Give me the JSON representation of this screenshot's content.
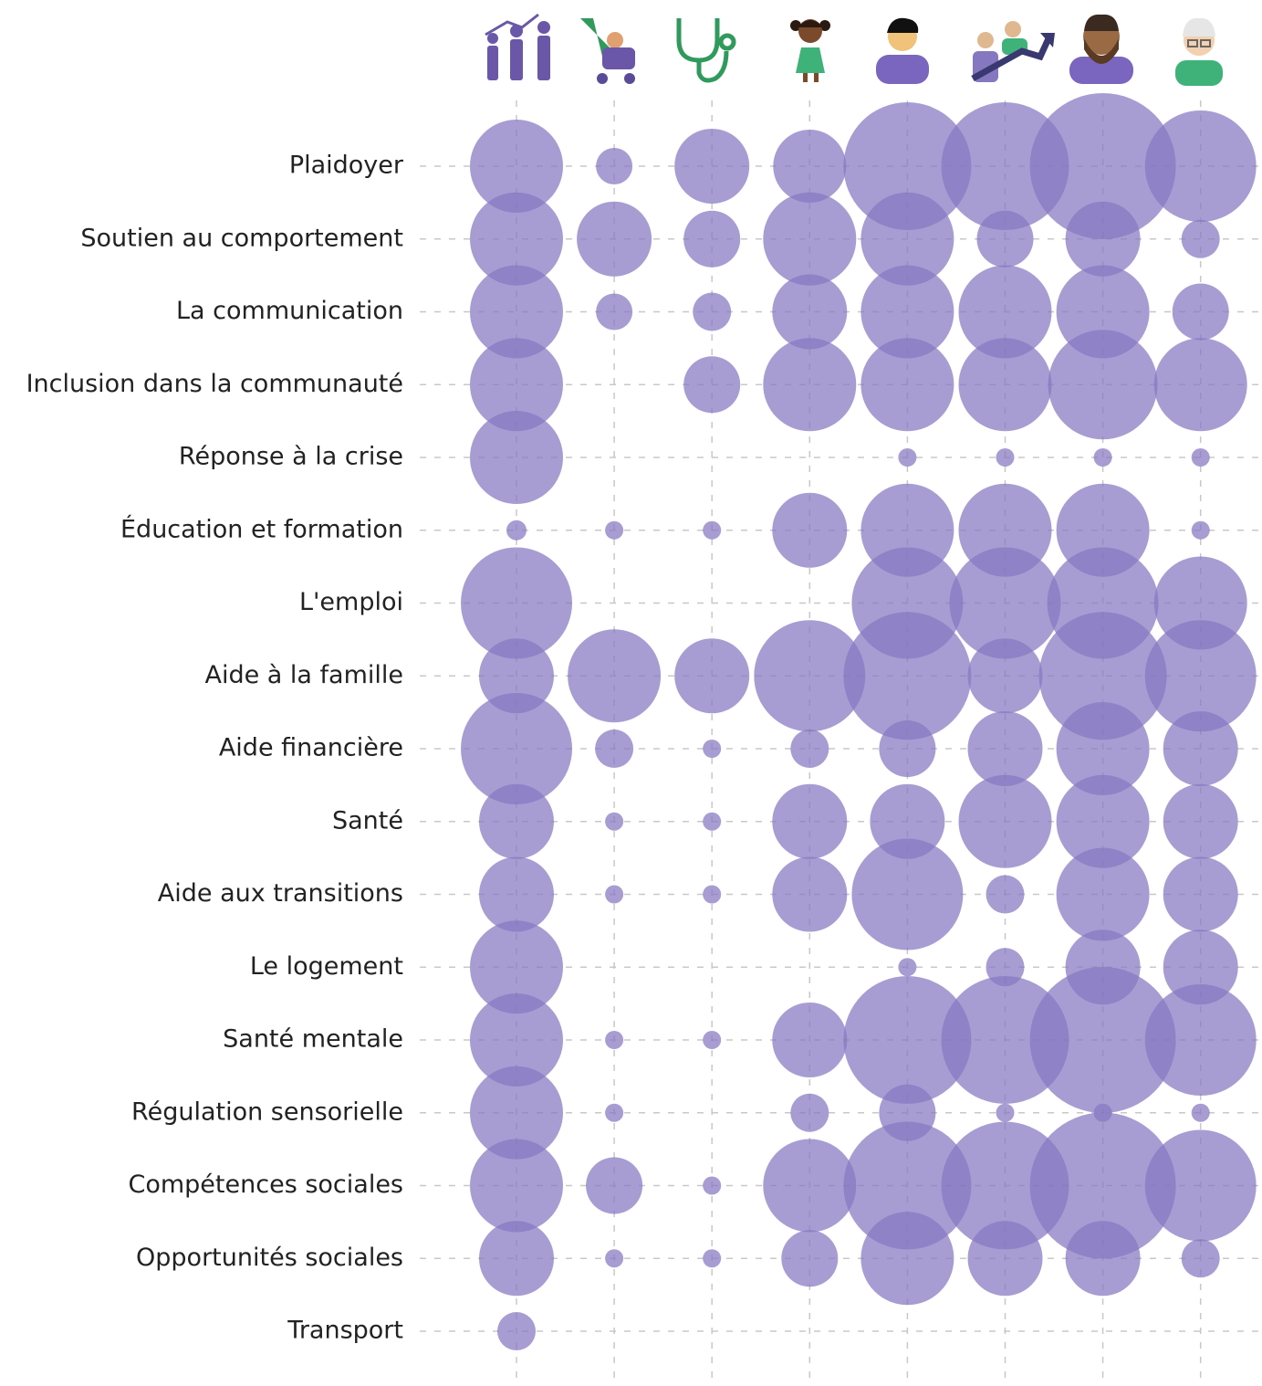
{
  "chart_data": {
    "type": "bubble_matrix",
    "categories": [
      "Plaidoyer",
      "Soutien au comportement",
      "La communication",
      "Inclusion dans la communauté",
      "Réponse à la crise",
      "Éducation et formation",
      "L'emploi",
      "Aide à la famille",
      "Aide financière",
      "Santé",
      "Aide aux transitions",
      "Le logement",
      "Santé mentale",
      "Régulation sensorielle",
      "Compétences sociales",
      "Opportunités sociales",
      "Transport"
    ],
    "columns": [
      null,
      null,
      null,
      null,
      null,
      null,
      null,
      null
    ],
    "values": [
      [
        102,
        40,
        82,
        80,
        140,
        140,
        160,
        122
      ],
      [
        102,
        82,
        62,
        102,
        102,
        62,
        82,
        42
      ],
      [
        102,
        40,
        42,
        82,
        102,
        102,
        102,
        62
      ],
      [
        102,
        null,
        62,
        102,
        102,
        102,
        120,
        102
      ],
      [
        102,
        null,
        null,
        null,
        20,
        20,
        20,
        20
      ],
      [
        22,
        20,
        20,
        82,
        102,
        102,
        102,
        20
      ],
      [
        122,
        null,
        null,
        null,
        122,
        122,
        122,
        102
      ],
      [
        82,
        102,
        82,
        122,
        140,
        82,
        140,
        122
      ],
      [
        122,
        42,
        20,
        42,
        62,
        82,
        102,
        82
      ],
      [
        82,
        20,
        20,
        82,
        82,
        102,
        102,
        82
      ],
      [
        82,
        20,
        20,
        82,
        122,
        42,
        102,
        82
      ],
      [
        102,
        null,
        null,
        null,
        20,
        42,
        82,
        82
      ],
      [
        102,
        20,
        20,
        82,
        140,
        140,
        160,
        122
      ],
      [
        102,
        20,
        null,
        42,
        62,
        20,
        20,
        20
      ],
      [
        102,
        62,
        20,
        102,
        140,
        140,
        160,
        122
      ],
      [
        82,
        20,
        20,
        62,
        102,
        82,
        82,
        42
      ],
      [
        42,
        null,
        null,
        null,
        null,
        null,
        null,
        null
      ]
    ],
    "color": "#8677c1",
    "grid": true
  }
}
